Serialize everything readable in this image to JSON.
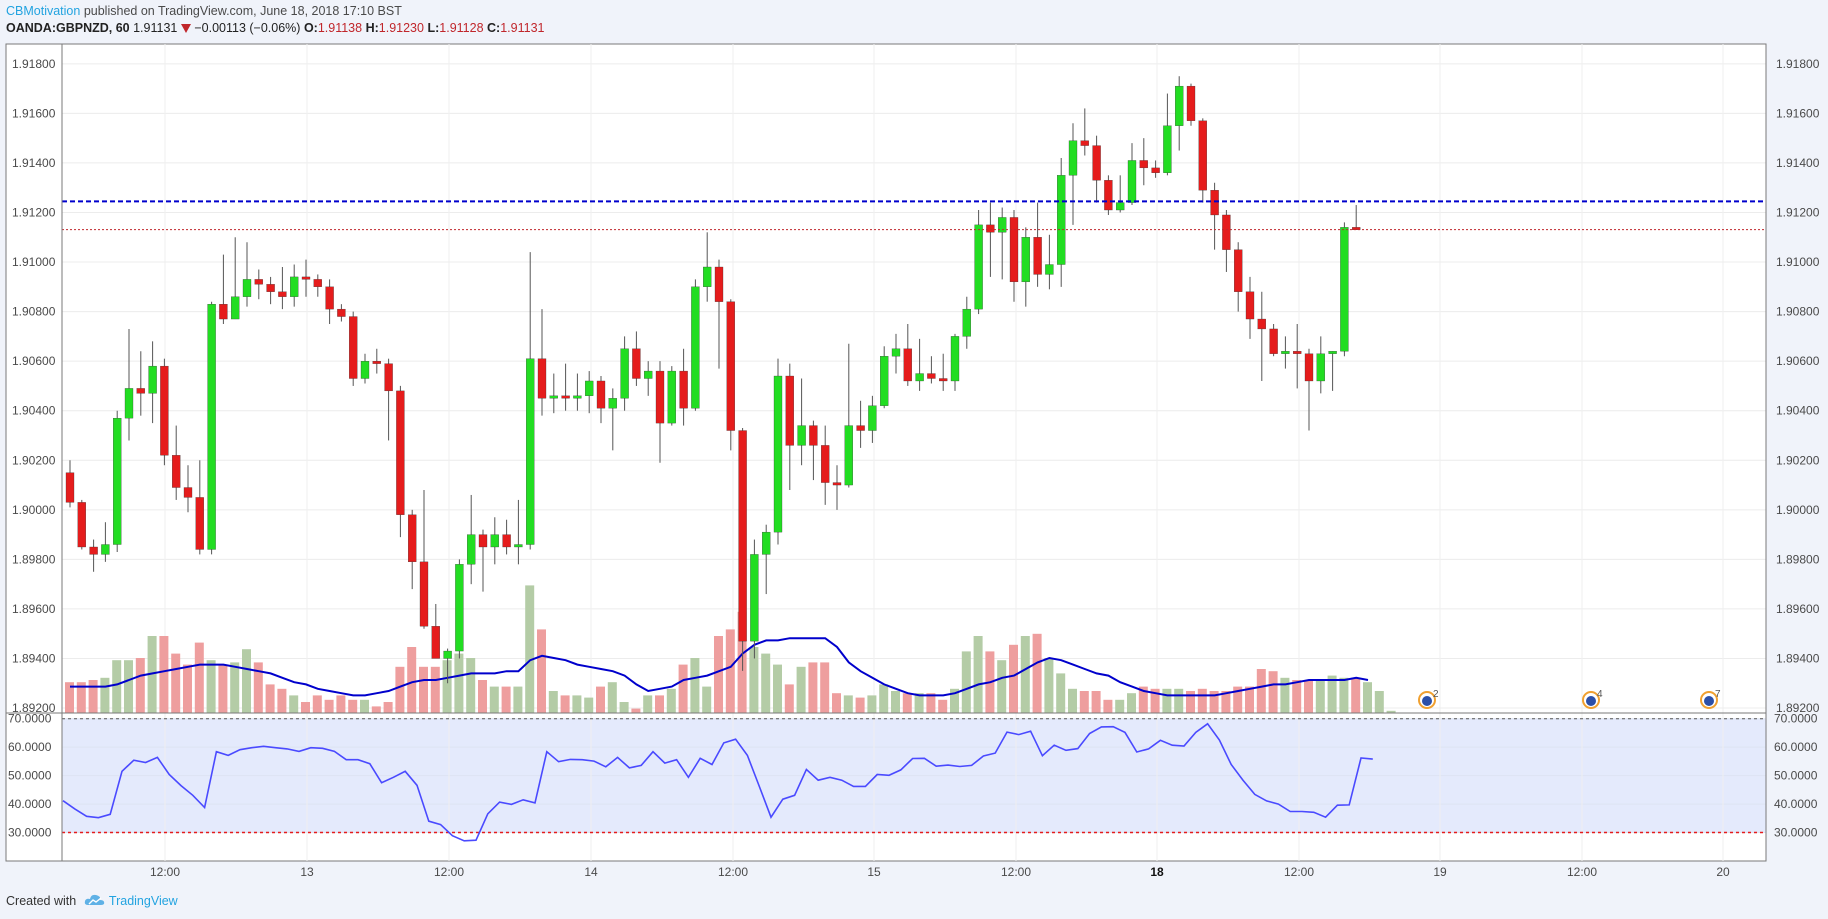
{
  "header": {
    "author": "CBMotivation",
    "published_text": "published on TradingView.com, June 18, 2018 17:10 BST",
    "symbol": "OANDA:GBPNZD, 60",
    "last": "1.91131",
    "change": "−0.00113 (−0.06%)",
    "o_label": "O:",
    "o": "1.91138",
    "h_label": "H:",
    "h": "1.91230",
    "l_label": "L:",
    "l": "1.91128",
    "c_label": "C:",
    "c": "1.91131"
  },
  "footer": {
    "created_with": "Created with",
    "brand": "TradingView"
  },
  "colors": {
    "up": "#22dd22",
    "down": "#e51c1c",
    "vol_up": "#b4cca6",
    "vol_down": "#ee9e9e",
    "ma": "#0000cc",
    "rsi": "#4a4aff",
    "rsi_band": "#e4eafc",
    "blue_level": "#0000cc",
    "red_level": "#c0262b"
  },
  "chart_data": [
    {
      "type": "candlestick",
      "ylim": [
        1.8918,
        1.9188
      ],
      "y_ticks": [
        "1.91800",
        "1.91600",
        "1.91400",
        "1.91200",
        "1.91000",
        "1.90800",
        "1.90600",
        "1.90400",
        "1.90200",
        "1.90000",
        "1.89800",
        "1.89600",
        "1.89400",
        "1.89200"
      ],
      "x_ticks": [
        "12:00",
        "13",
        "12:00",
        "14",
        "12:00",
        "15",
        "12:00",
        "18",
        "12:00",
        "19",
        "12:00",
        "20"
      ],
      "horizontal_levels": [
        {
          "value": 1.91245,
          "style": "dashed",
          "color": "blue"
        },
        {
          "value": 1.91131,
          "style": "dotted",
          "color": "red"
        }
      ],
      "candles": [
        {
          "o": 1.9015,
          "h": 1.902,
          "l": 1.9001,
          "c": 1.9003
        },
        {
          "o": 1.9003,
          "h": 1.9004,
          "l": 1.8984,
          "c": 1.8985
        },
        {
          "o": 1.8985,
          "h": 1.8988,
          "l": 1.8975,
          "c": 1.8982
        },
        {
          "o": 1.8982,
          "h": 1.8995,
          "l": 1.8979,
          "c": 1.8986
        },
        {
          "o": 1.8986,
          "h": 1.904,
          "l": 1.8983,
          "c": 1.9037
        },
        {
          "o": 1.9037,
          "h": 1.9073,
          "l": 1.9028,
          "c": 1.9049
        },
        {
          "o": 1.9049,
          "h": 1.9064,
          "l": 1.9038,
          "c": 1.9047
        },
        {
          "o": 1.9047,
          "h": 1.9068,
          "l": 1.9035,
          "c": 1.9058
        },
        {
          "o": 1.9058,
          "h": 1.9061,
          "l": 1.9018,
          "c": 1.9022
        },
        {
          "o": 1.9022,
          "h": 1.9034,
          "l": 1.9004,
          "c": 1.9009
        },
        {
          "o": 1.9009,
          "h": 1.9018,
          "l": 1.8999,
          "c": 1.9005
        },
        {
          "o": 1.9005,
          "h": 1.902,
          "l": 1.8982,
          "c": 1.8984
        },
        {
          "o": 1.8984,
          "h": 1.9084,
          "l": 1.8982,
          "c": 1.9083
        },
        {
          "o": 1.9083,
          "h": 1.9103,
          "l": 1.9075,
          "c": 1.9077
        },
        {
          "o": 1.9077,
          "h": 1.911,
          "l": 1.9077,
          "c": 1.9086
        },
        {
          "o": 1.9086,
          "h": 1.9108,
          "l": 1.9082,
          "c": 1.9093
        },
        {
          "o": 1.9093,
          "h": 1.9097,
          "l": 1.9085,
          "c": 1.9091
        },
        {
          "o": 1.9091,
          "h": 1.9094,
          "l": 1.9083,
          "c": 1.9088
        },
        {
          "o": 1.9088,
          "h": 1.9098,
          "l": 1.9081,
          "c": 1.9086
        },
        {
          "o": 1.9086,
          "h": 1.9099,
          "l": 1.9082,
          "c": 1.9094
        },
        {
          "o": 1.9094,
          "h": 1.9101,
          "l": 1.9086,
          "c": 1.9093
        },
        {
          "o": 1.9093,
          "h": 1.9095,
          "l": 1.9086,
          "c": 1.909
        },
        {
          "o": 1.909,
          "h": 1.9093,
          "l": 1.9075,
          "c": 1.9081
        },
        {
          "o": 1.9081,
          "h": 1.9083,
          "l": 1.9076,
          "c": 1.9078
        },
        {
          "o": 1.9078,
          "h": 1.908,
          "l": 1.905,
          "c": 1.9053
        },
        {
          "o": 1.9053,
          "h": 1.9063,
          "l": 1.9051,
          "c": 1.906
        },
        {
          "o": 1.906,
          "h": 1.9065,
          "l": 1.9055,
          "c": 1.9059
        },
        {
          "o": 1.9059,
          "h": 1.9061,
          "l": 1.9028,
          "c": 1.9048
        },
        {
          "o": 1.9048,
          "h": 1.905,
          "l": 1.8989,
          "c": 1.8998
        },
        {
          "o": 1.8998,
          "h": 1.9,
          "l": 1.8968,
          "c": 1.8979
        },
        {
          "o": 1.8979,
          "h": 1.9008,
          "l": 1.8952,
          "c": 1.8953
        },
        {
          "o": 1.8953,
          "h": 1.8962,
          "l": 1.894,
          "c": 1.894
        },
        {
          "o": 1.894,
          "h": 1.8944,
          "l": 1.893,
          "c": 1.8943
        },
        {
          "o": 1.8943,
          "h": 1.898,
          "l": 1.894,
          "c": 1.8978
        },
        {
          "o": 1.8978,
          "h": 1.9006,
          "l": 1.897,
          "c": 1.899
        },
        {
          "o": 1.899,
          "h": 1.8992,
          "l": 1.8967,
          "c": 1.8985
        },
        {
          "o": 1.8985,
          "h": 1.8997,
          "l": 1.8978,
          "c": 1.899
        },
        {
          "o": 1.899,
          "h": 1.8996,
          "l": 1.8982,
          "c": 1.8985
        },
        {
          "o": 1.8985,
          "h": 1.9004,
          "l": 1.8978,
          "c": 1.8986
        },
        {
          "o": 1.8986,
          "h": 1.9104,
          "l": 1.8984,
          "c": 1.9061
        },
        {
          "o": 1.9061,
          "h": 1.9081,
          "l": 1.9038,
          "c": 1.9045
        },
        {
          "o": 1.9045,
          "h": 1.9055,
          "l": 1.9039,
          "c": 1.9046
        },
        {
          "o": 1.9046,
          "h": 1.9059,
          "l": 1.904,
          "c": 1.9045
        },
        {
          "o": 1.9045,
          "h": 1.9055,
          "l": 1.904,
          "c": 1.9046
        },
        {
          "o": 1.9046,
          "h": 1.9056,
          "l": 1.9039,
          "c": 1.9052
        },
        {
          "o": 1.9052,
          "h": 1.9054,
          "l": 1.9035,
          "c": 1.9041
        },
        {
          "o": 1.9041,
          "h": 1.9049,
          "l": 1.9024,
          "c": 1.9045
        },
        {
          "o": 1.9045,
          "h": 1.907,
          "l": 1.904,
          "c": 1.9065
        },
        {
          "o": 1.9065,
          "h": 1.9072,
          "l": 1.905,
          "c": 1.9053
        },
        {
          "o": 1.9053,
          "h": 1.906,
          "l": 1.9046,
          "c": 1.9056
        },
        {
          "o": 1.9056,
          "h": 1.906,
          "l": 1.9019,
          "c": 1.9035
        },
        {
          "o": 1.9035,
          "h": 1.9058,
          "l": 1.9034,
          "c": 1.9056
        },
        {
          "o": 1.9056,
          "h": 1.9065,
          "l": 1.9034,
          "c": 1.9041
        },
        {
          "o": 1.9041,
          "h": 1.9093,
          "l": 1.904,
          "c": 1.909
        },
        {
          "o": 1.909,
          "h": 1.9112,
          "l": 1.9084,
          "c": 1.9098
        },
        {
          "o": 1.9098,
          "h": 1.9101,
          "l": 1.9057,
          "c": 1.9084
        },
        {
          "o": 1.9084,
          "h": 1.9085,
          "l": 1.9024,
          "c": 1.9032
        },
        {
          "o": 1.9032,
          "h": 1.9033,
          "l": 1.8935,
          "c": 1.8947
        },
        {
          "o": 1.8947,
          "h": 1.8988,
          "l": 1.894,
          "c": 1.8982
        },
        {
          "o": 1.8982,
          "h": 1.8994,
          "l": 1.8966,
          "c": 1.8991
        },
        {
          "o": 1.8991,
          "h": 1.9061,
          "l": 1.8986,
          "c": 1.9054
        },
        {
          "o": 1.9054,
          "h": 1.9059,
          "l": 1.9008,
          "c": 1.9026
        },
        {
          "o": 1.9026,
          "h": 1.9053,
          "l": 1.9018,
          "c": 1.9034
        },
        {
          "o": 1.9034,
          "h": 1.9036,
          "l": 1.9012,
          "c": 1.9026
        },
        {
          "o": 1.9026,
          "h": 1.9034,
          "l": 1.9002,
          "c": 1.9011
        },
        {
          "o": 1.9011,
          "h": 1.9018,
          "l": 1.9,
          "c": 1.901
        },
        {
          "o": 1.901,
          "h": 1.9067,
          "l": 1.9009,
          "c": 1.9034
        },
        {
          "o": 1.9034,
          "h": 1.9044,
          "l": 1.9025,
          "c": 1.9032
        },
        {
          "o": 1.9032,
          "h": 1.9046,
          "l": 1.9027,
          "c": 1.9042
        },
        {
          "o": 1.9042,
          "h": 1.9066,
          "l": 1.9041,
          "c": 1.9062
        },
        {
          "o": 1.9062,
          "h": 1.9071,
          "l": 1.9055,
          "c": 1.9065
        },
        {
          "o": 1.9065,
          "h": 1.9075,
          "l": 1.905,
          "c": 1.9052
        },
        {
          "o": 1.9052,
          "h": 1.9069,
          "l": 1.9048,
          "c": 1.9055
        },
        {
          "o": 1.9055,
          "h": 1.9062,
          "l": 1.9051,
          "c": 1.9053
        },
        {
          "o": 1.9053,
          "h": 1.9063,
          "l": 1.9048,
          "c": 1.9052
        },
        {
          "o": 1.9052,
          "h": 1.9071,
          "l": 1.9048,
          "c": 1.907
        },
        {
          "o": 1.907,
          "h": 1.9086,
          "l": 1.9065,
          "c": 1.9081
        },
        {
          "o": 1.9081,
          "h": 1.9121,
          "l": 1.9079,
          "c": 1.9115
        },
        {
          "o": 1.9115,
          "h": 1.9124,
          "l": 1.9094,
          "c": 1.9112
        },
        {
          "o": 1.9112,
          "h": 1.9122,
          "l": 1.9093,
          "c": 1.9118
        },
        {
          "o": 1.9118,
          "h": 1.9121,
          "l": 1.9084,
          "c": 1.9092
        },
        {
          "o": 1.9092,
          "h": 1.9114,
          "l": 1.9082,
          "c": 1.911
        },
        {
          "o": 1.911,
          "h": 1.9124,
          "l": 1.909,
          "c": 1.9095
        },
        {
          "o": 1.9095,
          "h": 1.9111,
          "l": 1.9089,
          "c": 1.9099
        },
        {
          "o": 1.9099,
          "h": 1.9142,
          "l": 1.909,
          "c": 1.9135
        },
        {
          "o": 1.9135,
          "h": 1.9156,
          "l": 1.9115,
          "c": 1.9149
        },
        {
          "o": 1.9149,
          "h": 1.9162,
          "l": 1.9143,
          "c": 1.9147
        },
        {
          "o": 1.9147,
          "h": 1.9151,
          "l": 1.9124,
          "c": 1.9133
        },
        {
          "o": 1.9133,
          "h": 1.9135,
          "l": 1.9119,
          "c": 1.9121
        },
        {
          "o": 1.9121,
          "h": 1.9135,
          "l": 1.912,
          "c": 1.9124
        },
        {
          "o": 1.9124,
          "h": 1.9148,
          "l": 1.9123,
          "c": 1.9141
        },
        {
          "o": 1.9141,
          "h": 1.915,
          "l": 1.9131,
          "c": 1.9138
        },
        {
          "o": 1.9138,
          "h": 1.9141,
          "l": 1.9134,
          "c": 1.9136
        },
        {
          "o": 1.9136,
          "h": 1.9168,
          "l": 1.9135,
          "c": 1.9155
        },
        {
          "o": 1.9155,
          "h": 1.9175,
          "l": 1.9145,
          "c": 1.9171
        },
        {
          "o": 1.9171,
          "h": 1.9172,
          "l": 1.9155,
          "c": 1.9157
        },
        {
          "o": 1.9157,
          "h": 1.9158,
          "l": 1.9124,
          "c": 1.9129
        },
        {
          "o": 1.9129,
          "h": 1.9132,
          "l": 1.9105,
          "c": 1.9119
        },
        {
          "o": 1.9119,
          "h": 1.9121,
          "l": 1.9096,
          "c": 1.9105
        },
        {
          "o": 1.9105,
          "h": 1.9108,
          "l": 1.908,
          "c": 1.9088
        },
        {
          "o": 1.9088,
          "h": 1.9094,
          "l": 1.9069,
          "c": 1.9077
        },
        {
          "o": 1.9077,
          "h": 1.9088,
          "l": 1.9052,
          "c": 1.9073
        },
        {
          "o": 1.9073,
          "h": 1.9075,
          "l": 1.9062,
          "c": 1.9063
        },
        {
          "o": 1.9063,
          "h": 1.907,
          "l": 1.9057,
          "c": 1.9064
        },
        {
          "o": 1.9064,
          "h": 1.9075,
          "l": 1.9049,
          "c": 1.9063
        },
        {
          "o": 1.9063,
          "h": 1.9065,
          "l": 1.9032,
          "c": 1.9052
        },
        {
          "o": 1.9052,
          "h": 1.907,
          "l": 1.9047,
          "c": 1.9063
        },
        {
          "o": 1.9063,
          "h": 1.9064,
          "l": 1.9048,
          "c": 1.9064
        },
        {
          "o": 1.9064,
          "h": 1.9116,
          "l": 1.9062,
          "c": 1.9114
        },
        {
          "o": 1.9114,
          "h": 1.9123,
          "l": 1.9113,
          "c": 1.9113
        }
      ]
    },
    {
      "type": "bar",
      "series_role": "volume",
      "values": [
        14,
        14,
        15,
        16,
        24,
        24,
        25,
        35,
        35,
        27,
        22,
        32,
        24,
        22,
        23,
        29,
        23,
        13,
        11,
        8,
        5,
        8,
        6,
        8,
        6,
        6,
        3,
        5,
        21,
        30,
        21,
        21,
        24,
        27,
        25,
        15,
        12,
        12,
        12,
        58,
        38,
        10,
        8,
        8,
        7,
        12,
        14,
        5,
        2,
        8,
        8,
        11,
        22,
        25,
        12,
        35,
        38,
        46,
        30,
        27,
        22,
        13,
        21,
        23,
        23,
        9,
        8,
        7,
        8,
        13,
        10,
        9,
        9,
        9,
        6,
        11,
        28,
        35,
        28,
        24,
        31,
        35,
        36,
        25,
        18,
        11,
        10,
        10,
        6,
        6,
        9,
        12,
        11,
        11,
        11,
        10,
        11,
        10,
        10,
        12,
        12,
        20,
        19,
        16,
        15,
        15,
        15,
        17,
        16,
        16,
        14,
        10,
        1
      ],
      "ma_values": [
        12,
        12,
        12,
        12,
        13,
        15,
        17,
        18,
        19,
        20,
        21,
        22,
        22,
        22,
        21,
        20,
        19,
        18,
        16,
        14,
        13,
        11,
        10,
        9,
        8,
        8,
        9,
        10,
        12,
        14,
        15,
        15,
        16,
        17,
        18,
        18,
        18,
        19,
        19,
        24,
        26,
        25,
        24,
        22,
        21,
        20,
        19,
        17,
        13,
        10,
        11,
        12,
        15,
        16,
        17,
        19,
        21,
        27,
        31,
        33,
        33,
        34,
        34,
        34,
        34,
        30,
        23,
        19,
        16,
        13,
        11,
        9,
        8,
        8,
        8,
        9,
        11,
        13,
        14,
        16,
        17,
        20,
        23,
        25,
        24,
        22,
        20,
        18,
        17,
        14,
        12,
        10,
        9,
        8,
        8,
        8,
        8,
        8,
        9,
        10,
        11,
        12,
        13,
        13,
        14,
        15,
        15,
        15,
        15,
        16,
        15
      ]
    },
    {
      "type": "line",
      "series_role": "RSI",
      "ylim": [
        20,
        72
      ],
      "y_ticks": [
        "70.0000",
        "60.0000",
        "50.0000",
        "40.0000",
        "30.0000"
      ],
      "band": [
        30,
        70
      ],
      "values": [
        41.2,
        38.3,
        35.7,
        35.2,
        36.4,
        51.5,
        55.4,
        54.6,
        56.4,
        50.4,
        46.5,
        43.1,
        38.8,
        58.4,
        57.1,
        59.1,
        59.8,
        60.3,
        59.8,
        59.4,
        58.5,
        59.8,
        59.6,
        58.5,
        55.6,
        55.6,
        54.2,
        47.5,
        49.4,
        51.5,
        46.6,
        34.0,
        32.8,
        28.9,
        27.1,
        27.3,
        36.6,
        40.7,
        39.9,
        41.5,
        40.4,
        58.4,
        54.9,
        55.7,
        55.6,
        55.1,
        53.1,
        56.4,
        52.7,
        53.6,
        58.4,
        54.4,
        55.6,
        49.4,
        56.1,
        53.9,
        61.5,
        62.8,
        57.1,
        46.3,
        35.4,
        41.7,
        43.1,
        52.2,
        48.4,
        49.4,
        48.4,
        46.2,
        46.2,
        50.4,
        50.1,
        52.0,
        56.0,
        56.1,
        53.3,
        53.7,
        53.2,
        53.6,
        56.9,
        57.9,
        65.3,
        64.4,
        65.6,
        57.0,
        60.7,
        58.9,
        59.5,
        64.8,
        67.1,
        67.2,
        65.2,
        58.3,
        59.4,
        62.4,
        60.7,
        60.4,
        65.2,
        68.2,
        62.5,
        53.9,
        48.4,
        43.4,
        41.1,
        40.0,
        37.4,
        37.4,
        37.1,
        35.4,
        39.6,
        39.7,
        56.2,
        55.8
      ]
    }
  ],
  "events": [
    {
      "icon": "earnings-event-icon",
      "count": "2"
    },
    {
      "icon": "earnings-event-icon",
      "count": "4"
    },
    {
      "icon": "earnings-event-icon",
      "count": "7"
    }
  ]
}
